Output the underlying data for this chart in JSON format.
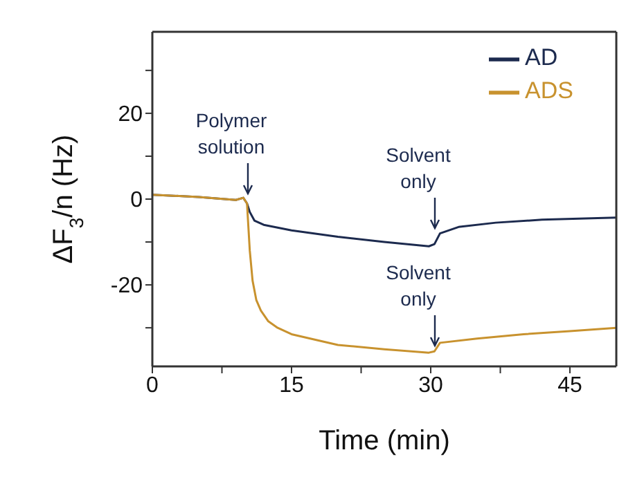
{
  "chart_data": {
    "type": "line",
    "xlabel": "Time (min)",
    "ylabel": "ΔF$_{3}$/n (Hz)",
    "xlim": [
      0,
      50
    ],
    "xticks": [
      0,
      {
        "value": 7.5,
        "label": null
      },
      15,
      {
        "value": 22.5,
        "label": null
      },
      30,
      {
        "value": 37.5,
        "label": null
      },
      45
    ],
    "ylim": [
      -39,
      39
    ],
    "yticks": [
      {
        "value": -30,
        "label": null
      },
      -20,
      {
        "value": -10,
        "label": null
      },
      0,
      {
        "value": 10,
        "label": null
      },
      20,
      {
        "value": 30,
        "label": null
      }
    ],
    "grid": false,
    "legend": "top right",
    "marker": "none",
    "line_style": "solid",
    "series": [
      {
        "name": "AD",
        "color": "#1c2a4e",
        "x": [
          0,
          5,
          9,
          9.8,
          10.2,
          10.5,
          11,
          12,
          15,
          20,
          25,
          29.8,
          30.4,
          31,
          33,
          37,
          42,
          50
        ],
        "values": [
          1,
          0.5,
          -0.2,
          0.3,
          -1,
          -3,
          -5,
          -6,
          -7.3,
          -8.8,
          -10,
          -11,
          -10.5,
          -8,
          -6.5,
          -5.5,
          -4.8,
          -4.3
        ]
      },
      {
        "name": "ADS",
        "color": "#c8922e",
        "x": [
          0,
          5,
          9,
          9.8,
          10.2,
          10.5,
          10.8,
          11.2,
          11.7,
          12.5,
          13.5,
          15,
          20,
          25,
          29.8,
          30.4,
          31,
          35,
          40,
          45,
          50
        ],
        "values": [
          1,
          0.5,
          -0.2,
          0.3,
          -1,
          -12,
          -19,
          -23.5,
          -26,
          -28.5,
          -30,
          -31.5,
          -34,
          -35,
          -35.8,
          -35.5,
          -33.5,
          -32.5,
          -31.5,
          -30.8,
          -30
        ]
      }
    ],
    "annotations": [
      "Polymer solution",
      "Solvent only",
      "Solvent only"
    ]
  }
}
